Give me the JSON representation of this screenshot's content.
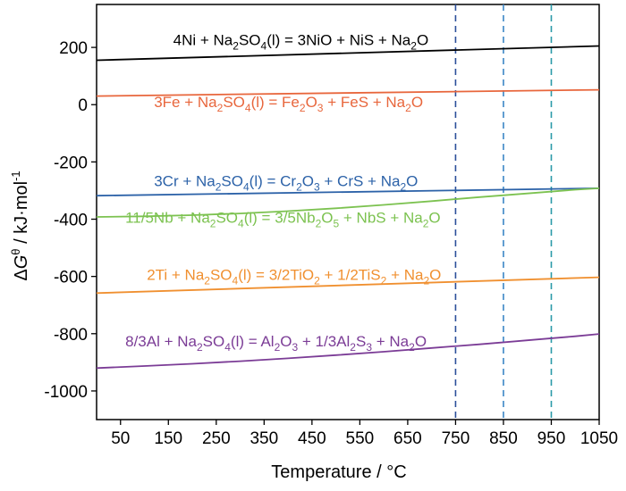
{
  "chart_data": {
    "type": "line",
    "xlabel_main": "Temperature / ",
    "xlabel_unit": "°C",
    "ylabel_delta": "Δ",
    "ylabel_G": "G",
    "ylabel_sup": "θ",
    "ylabel_mid": " / kJ·mol",
    "ylabel_exp": "-1",
    "xlim": [
      0,
      1050
    ],
    "ylim": [
      -1100,
      350
    ],
    "xticks": [
      50,
      150,
      250,
      350,
      450,
      550,
      650,
      750,
      850,
      950,
      1050
    ],
    "yticks": [
      200,
      0,
      -200,
      -400,
      -600,
      -800,
      -1000
    ],
    "grid": false,
    "reference_lines": [
      {
        "x": 750,
        "color": "#2b4f9a"
      },
      {
        "x": 850,
        "color": "#3b86c6"
      },
      {
        "x": 950,
        "color": "#2a9aa8"
      }
    ],
    "series": [
      {
        "color": "#000000",
        "x": [
          0,
          1050
        ],
        "y": [
          155,
          205
        ],
        "label_pos": [
          160,
          208
        ],
        "label": [
          {
            "t": "4Ni + Na"
          },
          {
            "t": "2",
            "s": "sub"
          },
          {
            "t": "SO"
          },
          {
            "t": "4",
            "s": "sub"
          },
          {
            "t": "(l) = 3NiO + NiS + Na"
          },
          {
            "t": "2",
            "s": "sub"
          },
          {
            "t": "O"
          }
        ]
      },
      {
        "color": "#e8663c",
        "x": [
          0,
          1050
        ],
        "y": [
          30,
          52
        ],
        "label_pos": [
          120,
          -8
        ],
        "label": [
          {
            "t": "3Fe + Na"
          },
          {
            "t": "2",
            "s": "sub"
          },
          {
            "t": "SO"
          },
          {
            "t": "4",
            "s": "sub"
          },
          {
            "t": "(l) = Fe"
          },
          {
            "t": "2",
            "s": "sub"
          },
          {
            "t": "O"
          },
          {
            "t": "3",
            "s": "sub"
          },
          {
            "t": " + FeS + Na"
          },
          {
            "t": "2",
            "s": "sub"
          },
          {
            "t": "O"
          }
        ]
      },
      {
        "color": "#2c62a8",
        "x": [
          0,
          1050
        ],
        "y": [
          -318,
          -292
        ],
        "label_pos": [
          120,
          -285
        ],
        "label": [
          {
            "t": "3Cr + Na"
          },
          {
            "t": "2",
            "s": "sub"
          },
          {
            "t": "SO"
          },
          {
            "t": "4",
            "s": "sub"
          },
          {
            "t": "(l) = Cr"
          },
          {
            "t": "2",
            "s": "sub"
          },
          {
            "t": "O"
          },
          {
            "t": "3",
            "s": "sub"
          },
          {
            "t": " + CrS + Na"
          },
          {
            "t": "2",
            "s": "sub"
          },
          {
            "t": "O"
          }
        ]
      },
      {
        "color": "#7cc250",
        "x": [
          0,
          100,
          200,
          300,
          400,
          500,
          600,
          700,
          800,
          900,
          1000,
          1050
        ],
        "y": [
          -392,
          -390,
          -386,
          -380,
          -372,
          -362,
          -350,
          -337,
          -323,
          -310,
          -297,
          -292
        ],
        "label_pos": [
          60,
          -412
        ],
        "label": [
          {
            "t": "11/5Nb + Na"
          },
          {
            "t": "2",
            "s": "sub"
          },
          {
            "t": "SO"
          },
          {
            "t": "4",
            "s": "sub"
          },
          {
            "t": "(l) = 3/5Nb"
          },
          {
            "t": "2",
            "s": "sub"
          },
          {
            "t": "O"
          },
          {
            "t": "5",
            "s": "sub"
          },
          {
            "t": " + NbS + Na"
          },
          {
            "t": "2",
            "s": "sub"
          },
          {
            "t": "O"
          }
        ]
      },
      {
        "color": "#f09030",
        "x": [
          0,
          1050
        ],
        "y": [
          -658,
          -603
        ],
        "label_pos": [
          105,
          -612
        ],
        "label": [
          {
            "t": "2Ti + Na"
          },
          {
            "t": "2",
            "s": "sub"
          },
          {
            "t": "SO"
          },
          {
            "t": "4",
            "s": "sub"
          },
          {
            "t": "(l) = 3/2TiO"
          },
          {
            "t": "2",
            "s": "sub"
          },
          {
            "t": " + 1/2TiS"
          },
          {
            "t": "2",
            "s": "sub"
          },
          {
            "t": " + Na"
          },
          {
            "t": "2",
            "s": "sub"
          },
          {
            "t": "O"
          }
        ]
      },
      {
        "color": "#7b3c96",
        "x": [
          0,
          100,
          200,
          300,
          400,
          500,
          600,
          700,
          800,
          900,
          1000,
          1050
        ],
        "y": [
          -920,
          -913,
          -905,
          -896,
          -886,
          -875,
          -863,
          -850,
          -837,
          -823,
          -809,
          -801
        ],
        "label_pos": [
          60,
          -845
        ],
        "label": [
          {
            "t": "8/3Al + Na"
          },
          {
            "t": "2",
            "s": "sub"
          },
          {
            "t": "SO"
          },
          {
            "t": "4",
            "s": "sub"
          },
          {
            "t": "(l) = Al"
          },
          {
            "t": "2",
            "s": "sub"
          },
          {
            "t": "O"
          },
          {
            "t": "3",
            "s": "sub"
          },
          {
            "t": " + 1/3Al"
          },
          {
            "t": "2",
            "s": "sub"
          },
          {
            "t": "S"
          },
          {
            "t": "3",
            "s": "sub"
          },
          {
            "t": " + Na"
          },
          {
            "t": "2",
            "s": "sub"
          },
          {
            "t": "O"
          }
        ]
      }
    ]
  }
}
